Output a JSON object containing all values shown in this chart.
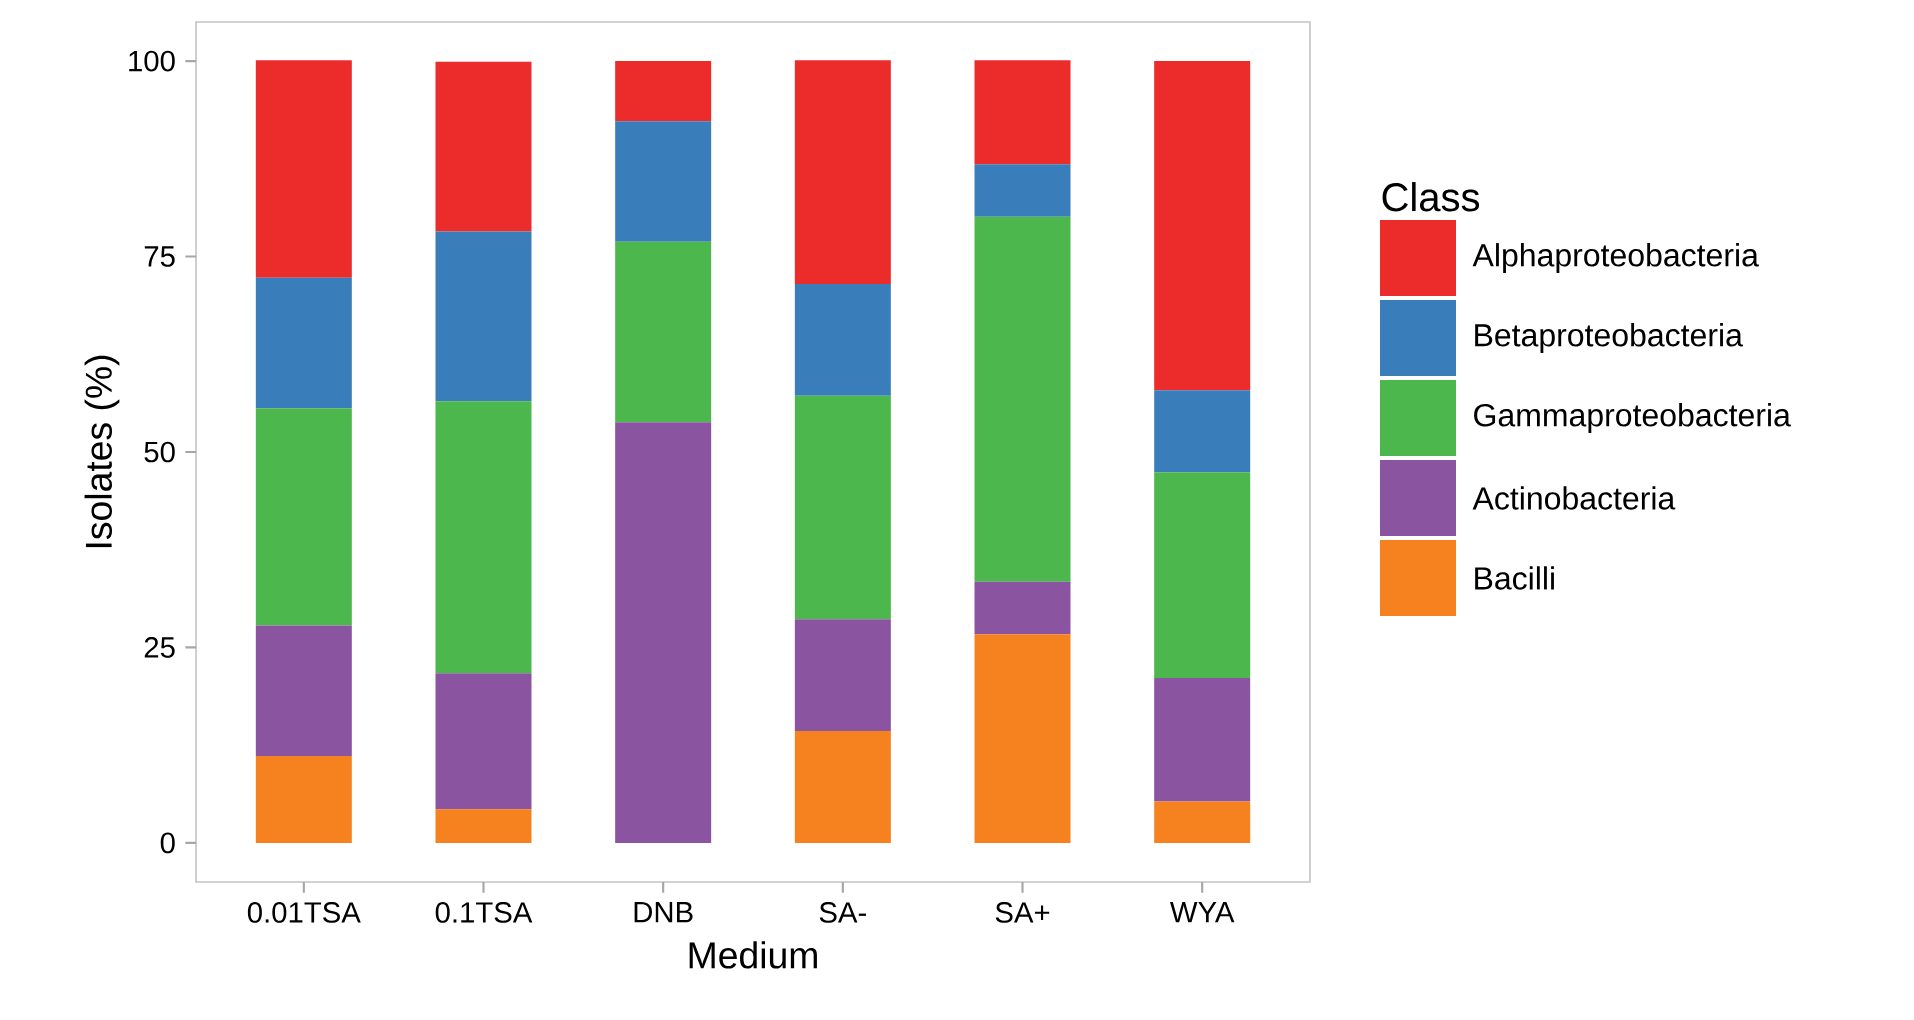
{
  "chart_data": {
    "type": "bar",
    "stacked": true,
    "xlabel": "Medium",
    "ylabel": "Isolates (%)",
    "legend_title": "Class",
    "legend": "right",
    "grid": false,
    "categories": [
      "0.01TSA",
      "0.1TSA",
      "DNB",
      "SA-",
      "SA+",
      "WYA"
    ],
    "ylim": [
      -5,
      105
    ],
    "yticks": [
      0,
      25,
      50,
      75,
      100
    ],
    "series": [
      {
        "name": "Bacilli",
        "color": "#f5821f",
        "values": [
          11.1,
          4.3,
          0,
          14.3,
          26.7,
          5.3
        ]
      },
      {
        "name": "Actinobacteria",
        "color": "#8b54a1",
        "values": [
          16.7,
          17.4,
          53.8,
          14.3,
          6.7,
          15.8
        ]
      },
      {
        "name": "Gammaproteobacteria",
        "color": "#4cb74c",
        "values": [
          27.8,
          34.8,
          23.1,
          28.6,
          46.7,
          26.3
        ]
      },
      {
        "name": "Betaproteobacteria",
        "color": "#3a7dbb",
        "values": [
          16.7,
          21.7,
          15.4,
          14.3,
          6.7,
          10.5
        ]
      },
      {
        "name": "Alphaproteobacteria",
        "color": "#ec2b2b",
        "values": [
          27.8,
          21.7,
          7.7,
          28.6,
          13.3,
          42.1
        ]
      }
    ]
  }
}
